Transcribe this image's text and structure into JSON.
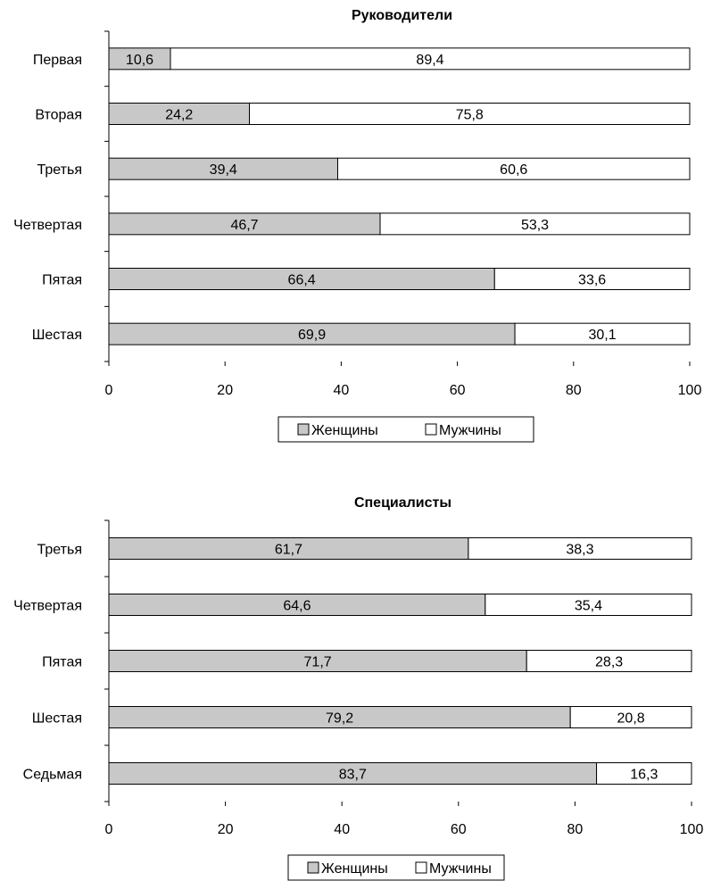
{
  "chart_data": [
    {
      "type": "bar",
      "orientation": "horizontal",
      "stacked": true,
      "title": "Руководители",
      "categories": [
        "Первая",
        "Вторая",
        "Третья",
        "Четвертая",
        "Пятая",
        "Шестая"
      ],
      "series": [
        {
          "name": "Женщины",
          "color": "#c8c8c8",
          "values": [
            10.6,
            24.2,
            39.4,
            46.7,
            66.4,
            69.9
          ]
        },
        {
          "name": "Мужчины",
          "color": "#ffffff",
          "values": [
            89.4,
            75.8,
            60.6,
            53.3,
            33.6,
            30.1
          ]
        }
      ],
      "value_labels": [
        [
          "10,6",
          "24,2",
          "39,4",
          "46,7",
          "66,4",
          "69,9"
        ],
        [
          "89,4",
          "75,8",
          "60,6",
          "53,3",
          "33,6",
          "30,1"
        ]
      ],
      "xlim": [
        0,
        100
      ],
      "xticks": [
        "0",
        "20",
        "40",
        "60",
        "80",
        "100"
      ],
      "grid": false,
      "legend_position": "bottom"
    },
    {
      "type": "bar",
      "orientation": "horizontal",
      "stacked": true,
      "title": "Специалисты",
      "categories": [
        "Третья",
        "Четвертая",
        "Пятая",
        "Шестая",
        "Седьмая"
      ],
      "series": [
        {
          "name": "Женщины",
          "color": "#c8c8c8",
          "values": [
            61.7,
            64.6,
            71.7,
            79.2,
            83.7
          ]
        },
        {
          "name": "Мужчины",
          "color": "#ffffff",
          "values": [
            38.3,
            35.4,
            28.3,
            20.8,
            16.3
          ]
        }
      ],
      "value_labels": [
        [
          "61,7",
          "64,6",
          "71,7",
          "79,2",
          "83,7"
        ],
        [
          "38,3",
          "35,4",
          "28,3",
          "20,8",
          "16,3"
        ]
      ],
      "xlim": [
        0,
        100
      ],
      "xticks": [
        "0",
        "20",
        "40",
        "60",
        "80",
        "100"
      ],
      "grid": false,
      "legend_position": "bottom"
    }
  ]
}
